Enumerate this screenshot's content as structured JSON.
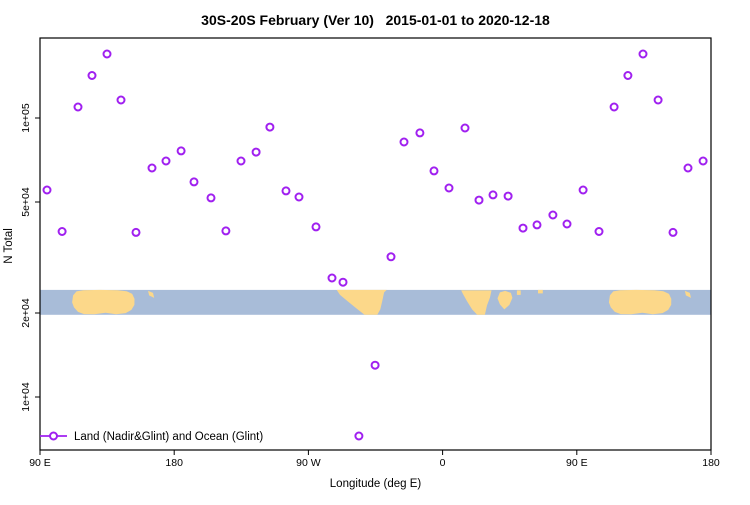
{
  "chart_data": {
    "type": "scatter",
    "title": "30S-20S February (Ver 10)   2015-01-01 to 2020-12-18",
    "xlabel": "Longitude (deg E)",
    "ylabel": "N Total",
    "x_axis": {
      "unit": "deg E",
      "span_deg": 450,
      "wraps_globe": true,
      "note": "axis starts at 90E and wraps eastward around the globe; the 90E-180 segment is shown twice",
      "ticks": [
        {
          "off": 0,
          "label": "90 E"
        },
        {
          "off": 90,
          "label": "180"
        },
        {
          "off": 180,
          "label": "90 W"
        },
        {
          "off": 270,
          "label": "0"
        },
        {
          "off": 360,
          "label": "90 E"
        },
        {
          "off": 450,
          "label": "180"
        }
      ]
    },
    "y_axis": {
      "scale": "log10",
      "range": [
        6500,
        194000
      ],
      "ticks": [
        {
          "value": 100000,
          "label": "1e+05"
        },
        {
          "value": 50000,
          "label": "5e+04"
        },
        {
          "value": 20000,
          "label": "2e+04"
        },
        {
          "value": 10000,
          "label": "1e+04"
        }
      ]
    },
    "legend": {
      "position": "bottom-left",
      "entries": [
        {
          "label": "Land (Nadir&Glint) and Ocean (Glint)",
          "marker": "open-circle-on-line",
          "color": "#A020F0"
        }
      ]
    },
    "series": [
      {
        "name": "Land (Nadir&Glint) and Ocean (Glint)",
        "marker": "open-circle",
        "color": "#A020F0",
        "points": [
          [
            44.9,
            169600
          ],
          [
            34.9,
            142000
          ],
          [
            25.5,
            109500
          ],
          [
            54.3,
            116000
          ],
          [
            4.7,
            55200
          ],
          [
            75.1,
            66200
          ],
          [
            84.5,
            70100
          ],
          [
            94.6,
            76200
          ],
          [
            103.3,
            59000
          ],
          [
            114.7,
            51700
          ],
          [
            14.8,
            39200
          ],
          [
            64.4,
            38900
          ],
          [
            154.2,
            92800
          ],
          [
            144.9,
            75500
          ],
          [
            134.8,
            70100
          ],
          [
            165.0,
            54800
          ],
          [
            173.7,
            52100
          ],
          [
            124.7,
            39400
          ],
          [
            185.1,
            40700
          ],
          [
            195.8,
            26700
          ],
          [
            203.2,
            25800
          ],
          [
            235.4,
            31800
          ],
          [
            224.7,
            13000
          ],
          [
            213.9,
            7250
          ],
          [
            254.8,
            88400
          ],
          [
            244.1,
            82000
          ],
          [
            285.0,
            92100
          ],
          [
            264.2,
            64600
          ],
          [
            274.3,
            56100
          ],
          [
            294.4,
            50800
          ],
          [
            303.8,
            53000
          ],
          [
            313.9,
            52500
          ],
          [
            323.9,
            40300
          ],
          [
            333.3,
            41400
          ],
          [
            344.0,
            44900
          ],
          [
            353.4,
            41700
          ],
          [
            364.2,
            55200
          ],
          [
            374.9,
            39200
          ],
          [
            404.4,
            169600
          ],
          [
            394.3,
            142000
          ],
          [
            385.0,
            109500
          ],
          [
            414.5,
            116000
          ],
          [
            434.6,
            66200
          ],
          [
            444.7,
            70100
          ],
          [
            424.5,
            38900
          ]
        ]
      }
    ],
    "map_strip": {
      "description": "land/ocean map of the 30S-20S latitude band drawn as a horizontal strip near N = 2e+04",
      "ocean_color": "#A8BCD8",
      "land_color": "#FCD88A",
      "n_range": [
        19700,
        24200
      ],
      "land_polygons": [
        {
          "name": "australia",
          "pts": [
            [
              21.5,
              0.5
            ],
            [
              22.2,
              0.22
            ],
            [
              24.5,
              0.06
            ],
            [
              29,
              0.01
            ],
            [
              40,
              0
            ],
            [
              52,
              0.01
            ],
            [
              58,
              0.05
            ],
            [
              61.8,
              0.16
            ],
            [
              63.4,
              0.36
            ],
            [
              63.3,
              0.6
            ],
            [
              61.3,
              0.8
            ],
            [
              57.5,
              0.93
            ],
            [
              51,
              0.98
            ],
            [
              44,
              0.92
            ],
            [
              36.5,
              0.98
            ],
            [
              29.5,
              0.97
            ],
            [
              25.5,
              0.88
            ],
            [
              22.8,
              0.7
            ]
          ]
        },
        {
          "name": "new-caledonia",
          "pts": [
            [
              72.5,
              0.04
            ],
            [
              75.8,
              0.12
            ],
            [
              76.6,
              0.32
            ],
            [
              73.2,
              0.22
            ]
          ]
        },
        {
          "name": "south-america",
          "pts": [
            [
              199,
              0
            ],
            [
              232.5,
              0
            ],
            [
              230.8,
              0.1
            ],
            [
              229.6,
              0.42
            ],
            [
              228.2,
              0.78
            ],
            [
              226.2,
              1
            ],
            [
              217.6,
              1
            ],
            [
              212.2,
              0.74
            ],
            [
              206.4,
              0.46
            ],
            [
              201.2,
              0.2
            ]
          ]
        },
        {
          "name": "africa",
          "pts": [
            [
              282.5,
              0.02
            ],
            [
              302.8,
              0.02
            ],
            [
              301.8,
              0.3
            ],
            [
              299.8,
              0.62
            ],
            [
              298.4,
              1
            ],
            [
              293.2,
              1
            ],
            [
              289.8,
              0.78
            ],
            [
              286.4,
              0.46
            ],
            [
              283.6,
              0.16
            ]
          ]
        },
        {
          "name": "madagascar",
          "pts": [
            [
              306.8,
              0.34
            ],
            [
              308.4,
              0.1
            ],
            [
              312,
              0.04
            ],
            [
              315.8,
              0.12
            ],
            [
              316.8,
              0.32
            ],
            [
              314.8,
              0.6
            ],
            [
              311.4,
              0.78
            ],
            [
              308.4,
              0.58
            ]
          ]
        },
        {
          "name": "island-speck-1",
          "pts": [
            [
              319.8,
              0.02
            ],
            [
              322.4,
              0.02
            ],
            [
              322.4,
              0.2
            ],
            [
              319.8,
              0.2
            ]
          ]
        },
        {
          "name": "island-speck-2",
          "pts": [
            [
              334,
              0
            ],
            [
              337.2,
              0
            ],
            [
              337.2,
              0.14
            ],
            [
              334,
              0.14
            ]
          ]
        }
      ]
    }
  }
}
